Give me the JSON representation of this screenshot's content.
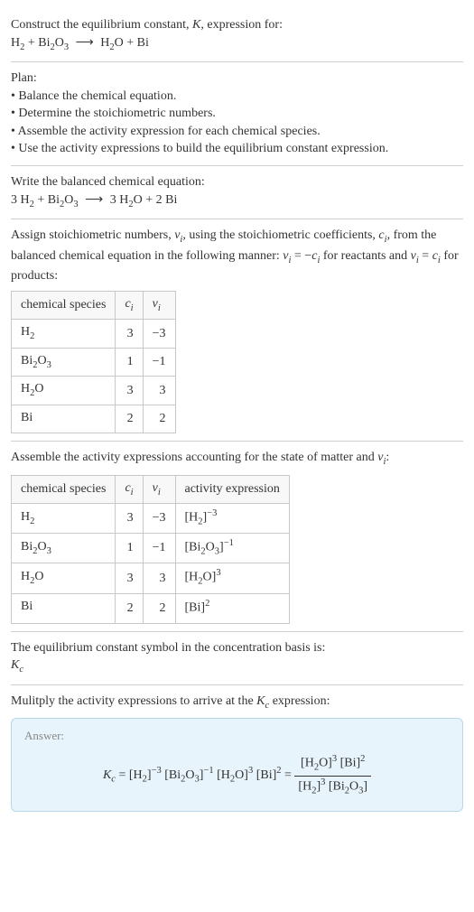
{
  "header": {
    "prompt": "Construct the equilibrium constant, ",
    "k_symbol": "K",
    "prompt_tail": ", expression for:"
  },
  "equation_initial": {
    "lhs1": "H",
    "lhs1_sub": "2",
    "plus1": " + ",
    "lhs2a": "Bi",
    "lhs2a_sub": "2",
    "lhs2b": "O",
    "lhs2b_sub": "3",
    "arrow": "⟶",
    "rhs1a": "H",
    "rhs1a_sub": "2",
    "rhs1b": "O",
    "plus2": " + ",
    "rhs2": "Bi"
  },
  "plan": {
    "title": "Plan:",
    "items": [
      "Balance the chemical equation.",
      "Determine the stoichiometric numbers.",
      "Assemble the activity expression for each chemical species.",
      "Use the activity expressions to build the equilibrium constant expression."
    ]
  },
  "balanced": {
    "intro": "Write the balanced chemical equation:",
    "c1": "3 ",
    "s1": "H",
    "s1_sub": "2",
    "plus1": " + ",
    "s2a": "Bi",
    "s2a_sub": "2",
    "s2b": "O",
    "s2b_sub": "3",
    "arrow": "⟶",
    "c3": "3 ",
    "s3a": "H",
    "s3a_sub": "2",
    "s3b": "O",
    "plus2": " + ",
    "c4": "2 ",
    "s4": "Bi"
  },
  "stoich_intro": {
    "p1": "Assign stoichiometric numbers, ",
    "nu": "ν",
    "nu_sub": "i",
    "p2": ", using the stoichiometric coefficients, ",
    "c": "c",
    "c_sub": "i",
    "p3": ", from the balanced chemical equation in the following manner: ",
    "rel1a": "ν",
    "rel1a_sub": "i",
    "rel1_eq": " = −",
    "rel1b": "c",
    "rel1b_sub": "i",
    "p4": " for reactants and ",
    "rel2a": "ν",
    "rel2a_sub": "i",
    "rel2_eq": " = ",
    "rel2b": "c",
    "rel2b_sub": "i",
    "p5": " for products:"
  },
  "table1": {
    "headers": {
      "h1": "chemical species",
      "h2": "c",
      "h2_sub": "i",
      "h3": "ν",
      "h3_sub": "i"
    },
    "rows": [
      {
        "sp_a": "H",
        "sp_a_sub": "2",
        "sp_b": "",
        "sp_b_sub": "",
        "c": "3",
        "nu": "−3"
      },
      {
        "sp_a": "Bi",
        "sp_a_sub": "2",
        "sp_b": "O",
        "sp_b_sub": "3",
        "c": "1",
        "nu": "−1"
      },
      {
        "sp_a": "H",
        "sp_a_sub": "2",
        "sp_b": "O",
        "sp_b_sub": "",
        "c": "3",
        "nu": "3"
      },
      {
        "sp_a": "Bi",
        "sp_a_sub": "",
        "sp_b": "",
        "sp_b_sub": "",
        "c": "2",
        "nu": "2"
      }
    ]
  },
  "activity_intro": {
    "p1": "Assemble the activity expressions accounting for the state of matter and ",
    "nu": "ν",
    "nu_sub": "i",
    "p2": ":"
  },
  "table2": {
    "headers": {
      "h1": "chemical species",
      "h2": "c",
      "h2_sub": "i",
      "h3": "ν",
      "h3_sub": "i",
      "h4": "activity expression"
    },
    "rows": [
      {
        "sp_a": "H",
        "sp_a_sub": "2",
        "sp_b": "",
        "sp_b_sub": "",
        "c": "3",
        "nu": "−3",
        "ae_a": "[H",
        "ae_a_sub": "2",
        "ae_b": "",
        "ae_b_sub": "",
        "ae_close": "]",
        "ae_exp": "−3"
      },
      {
        "sp_a": "Bi",
        "sp_a_sub": "2",
        "sp_b": "O",
        "sp_b_sub": "3",
        "c": "1",
        "nu": "−1",
        "ae_a": "[Bi",
        "ae_a_sub": "2",
        "ae_b": "O",
        "ae_b_sub": "3",
        "ae_close": "]",
        "ae_exp": "−1"
      },
      {
        "sp_a": "H",
        "sp_a_sub": "2",
        "sp_b": "O",
        "sp_b_sub": "",
        "c": "3",
        "nu": "3",
        "ae_a": "[H",
        "ae_a_sub": "2",
        "ae_b": "O",
        "ae_b_sub": "",
        "ae_close": "]",
        "ae_exp": "3"
      },
      {
        "sp_a": "Bi",
        "sp_a_sub": "",
        "sp_b": "",
        "sp_b_sub": "",
        "c": "2",
        "nu": "2",
        "ae_a": "[Bi",
        "ae_a_sub": "",
        "ae_b": "",
        "ae_b_sub": "",
        "ae_close": "]",
        "ae_exp": "2"
      }
    ]
  },
  "kc_symbol": {
    "p1": "The equilibrium constant symbol in the concentration basis is:",
    "k": "K",
    "k_sub": "c"
  },
  "multiply": {
    "p1": "Mulitply the activity expressions to arrive at the ",
    "k": "K",
    "k_sub": "c",
    "p2": " expression:"
  },
  "answer": {
    "label": "Answer:",
    "k": "K",
    "k_sub": "c",
    "eq": " = ",
    "t1": "[H",
    "t1_sub": "2",
    "t1_close": "]",
    "t1_exp": "−3",
    "sp1": " ",
    "t2a": "[Bi",
    "t2a_sub": "2",
    "t2b": "O",
    "t2b_sub": "3",
    "t2_close": "]",
    "t2_exp": "−1",
    "sp2": " ",
    "t3a": "[H",
    "t3a_sub": "2",
    "t3b": "O",
    "t3_close": "]",
    "t3_exp": "3",
    "sp3": " ",
    "t4": "[Bi]",
    "t4_exp": "2",
    "eq2": " = ",
    "num_a": "[H",
    "num_a_sub": "2",
    "num_b": "O]",
    "num_exp1": "3",
    "num_sp": " ",
    "num_c": "[Bi]",
    "num_exp2": "2",
    "den_a": "[H",
    "den_a_sub": "2",
    "den_a_close": "]",
    "den_exp1": "3",
    "den_sp": " ",
    "den_b": "[Bi",
    "den_b_sub": "2",
    "den_c": "O",
    "den_c_sub": "3",
    "den_close": "]"
  }
}
